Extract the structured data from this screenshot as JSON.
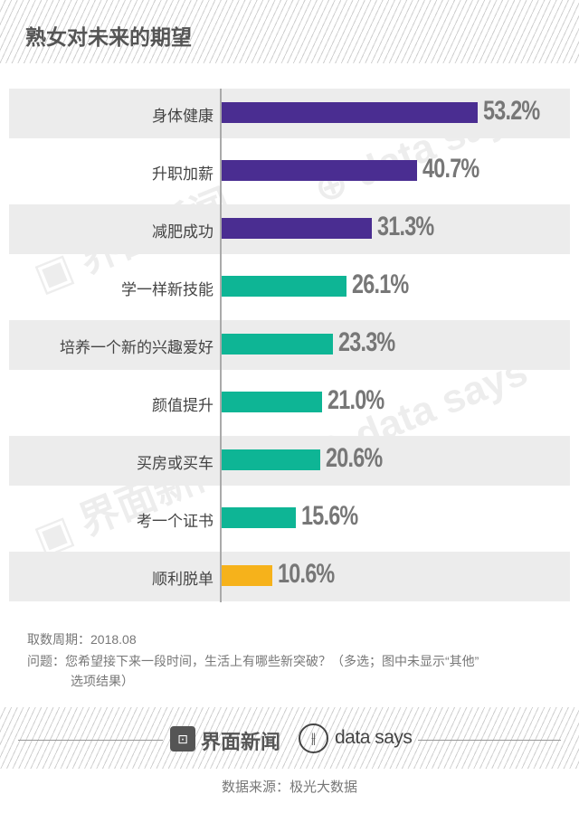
{
  "title": "熟女对未来的期望",
  "chart_data": {
    "type": "bar",
    "orientation": "horizontal",
    "title": "熟女对未来的期望",
    "categories": [
      "身体健康",
      "升职加薪",
      "减肥成功",
      "学一样新技能",
      "培养一个新的兴趣爱好",
      "颜值提升",
      "买房或买车",
      "考一个证书",
      "顺利脱单"
    ],
    "values": [
      53.2,
      40.7,
      31.3,
      26.1,
      23.3,
      21.0,
      20.6,
      15.6,
      10.6
    ],
    "value_labels": [
      "53.2%",
      "40.7%",
      "31.3%",
      "26.1%",
      "23.3%",
      "21.0%",
      "20.6%",
      "15.6%",
      "10.6%"
    ],
    "bar_colors": [
      "#4a2d91",
      "#4a2d91",
      "#4a2d91",
      "#0eb595",
      "#0eb595",
      "#0eb595",
      "#0eb595",
      "#0eb595",
      "#f6b21b"
    ],
    "unit": "%",
    "xlim": [
      0,
      60
    ]
  },
  "notes": {
    "period": "取数周期：2018.08",
    "question_line1": "问题：您希望接下来一段时间，生活上有哪些新突破？（多选；图中未显示“其他”",
    "question_line2": "选项结果）"
  },
  "footer": {
    "brand1": "界面新闻",
    "brand2": "data says",
    "source": "数据来源：极光大数据"
  }
}
